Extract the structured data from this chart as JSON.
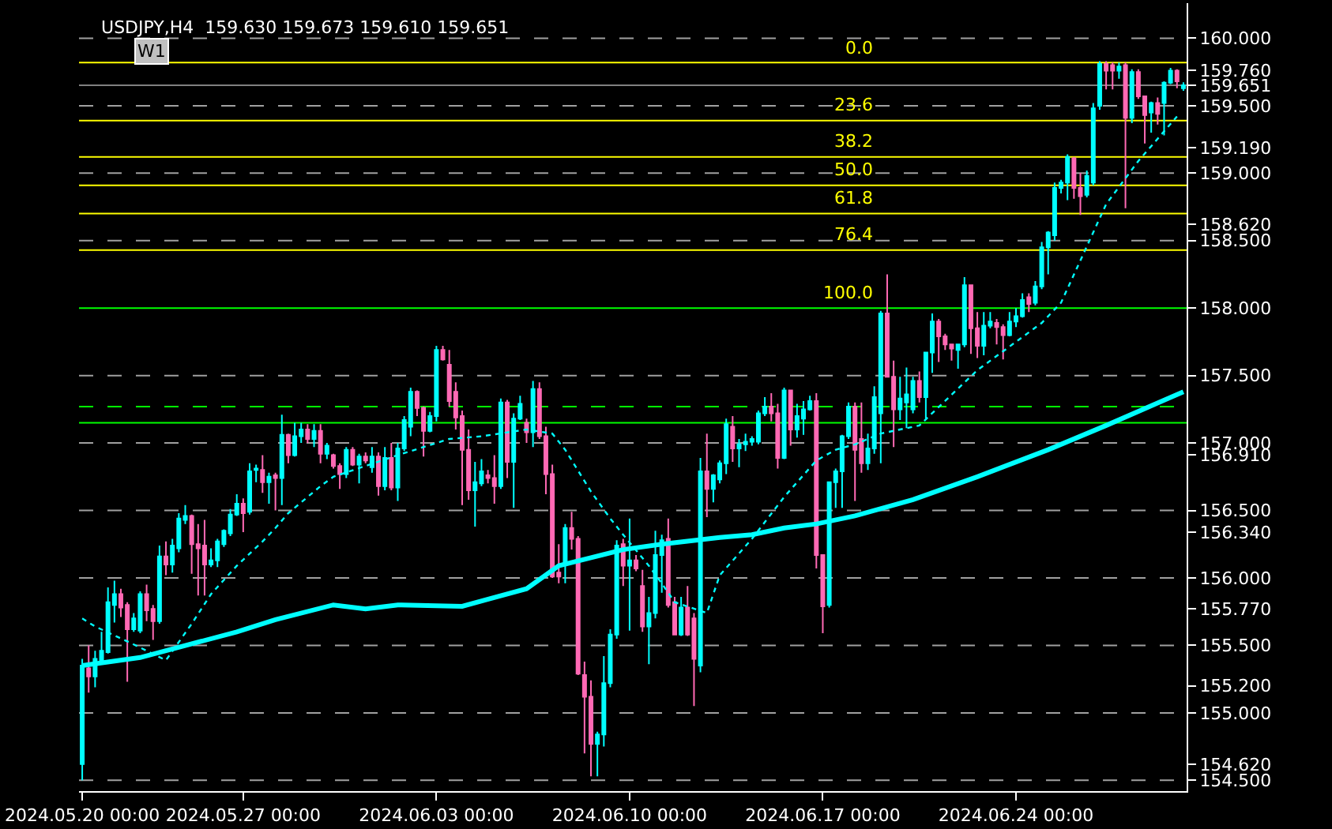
{
  "chart_data": {
    "type": "candlestick",
    "title": "USDJPY,H4  159.630 159.673 159.610 159.651",
    "annotations": [
      "W1",
      {
        "text": "0.0",
        "y": 159.82
      },
      {
        "text": "23.6",
        "y": 159.39
      },
      {
        "text": "38.2",
        "y": 159.12
      },
      {
        "text": "50.0",
        "y": 158.91
      },
      {
        "text": "61.8",
        "y": 158.7
      },
      {
        "text": "76.4",
        "y": 158.43
      },
      {
        "text": "100.0",
        "y": 158.0
      }
    ],
    "categories": [
      "2024.05.20 00:00",
      null,
      null,
      null,
      null,
      null,
      null,
      null,
      null,
      null,
      null,
      null,
      null,
      null,
      null,
      null,
      null,
      null,
      null,
      null,
      null,
      null,
      null,
      null,
      null,
      "2024.05.27 00:00",
      null,
      null,
      null,
      null,
      null,
      null,
      null,
      null,
      null,
      null,
      null,
      null,
      null,
      null,
      null,
      null,
      null,
      null,
      null,
      null,
      null,
      null,
      null,
      null,
      null,
      null,
      null,
      null,
      null,
      "2024.06.03 00:00",
      null,
      null,
      null,
      null,
      null,
      null,
      null,
      null,
      null,
      null,
      null,
      null,
      null,
      null,
      null,
      null,
      null,
      null,
      null,
      null,
      null,
      null,
      null,
      null,
      null,
      null,
      null,
      null,
      null,
      "2024.06.10 00:00",
      null,
      null,
      null,
      null,
      null,
      null,
      null,
      null,
      null,
      null,
      null,
      null,
      null,
      null,
      null,
      null,
      null,
      null,
      null,
      null,
      null,
      null,
      null,
      null,
      null,
      null,
      null,
      null,
      null,
      "2024.06.17 00:00",
      null,
      null,
      null,
      null,
      null,
      null,
      null,
      null,
      null,
      null,
      null,
      null,
      null,
      null,
      null,
      null,
      null,
      null,
      null,
      null,
      null,
      null,
      null,
      null,
      null,
      null,
      null,
      null,
      null,
      "2024.06.24 00:00",
      null,
      null,
      null,
      null,
      null,
      null,
      null,
      null,
      null,
      null,
      null,
      null,
      null,
      null,
      null,
      null,
      null,
      null,
      null,
      null,
      null,
      null,
      null,
      null,
      null,
      null
    ],
    "ylim": [
      154.42,
      160.26
    ],
    "yticks": [
      {
        "value": 160.0,
        "label": "160.000"
      },
      {
        "value": 159.76,
        "label": "159.760"
      },
      {
        "value": 159.651,
        "label": "159.651"
      },
      {
        "value": 159.5,
        "label": "159.500"
      },
      {
        "value": 159.19,
        "label": "159.190"
      },
      {
        "value": 159.0,
        "label": "159.000"
      },
      {
        "value": 158.62,
        "label": "158.620"
      },
      {
        "value": 158.5,
        "label": "158.500"
      },
      {
        "value": 158.0,
        "label": "158.000"
      },
      {
        "value": 157.5,
        "label": "157.500"
      },
      {
        "value": 157.0,
        "label": "157.000"
      },
      {
        "value": 156.91,
        "label": "156.910"
      },
      {
        "value": 156.5,
        "label": "156.500"
      },
      {
        "value": 156.34,
        "label": "156.340"
      },
      {
        "value": 156.0,
        "label": "156.000"
      },
      {
        "value": 155.77,
        "label": "155.770"
      },
      {
        "value": 155.5,
        "label": "155.500"
      },
      {
        "value": 155.2,
        "label": "155.200"
      },
      {
        "value": 155.0,
        "label": "155.000"
      },
      {
        "value": 154.62,
        "label": "154.620"
      },
      {
        "value": 154.5,
        "label": "154.500"
      }
    ],
    "ref_lines": [
      {
        "axis": "y",
        "value": 160.0,
        "color": "#a0a0a0",
        "line_style": "dashed"
      },
      {
        "axis": "y",
        "value": 159.5,
        "color": "#a0a0a0",
        "line_style": "dashed"
      },
      {
        "axis": "y",
        "value": 159.0,
        "color": "#a0a0a0",
        "line_style": "dashed"
      },
      {
        "axis": "y",
        "value": 158.5,
        "color": "#a0a0a0",
        "line_style": "dashed"
      },
      {
        "axis": "y",
        "value": 157.5,
        "color": "#a0a0a0",
        "line_style": "dashed"
      },
      {
        "axis": "y",
        "value": 157.0,
        "color": "#a0a0a0",
        "line_style": "dashed"
      },
      {
        "axis": "y",
        "value": 156.5,
        "color": "#a0a0a0",
        "line_style": "dashed"
      },
      {
        "axis": "y",
        "value": 156.0,
        "color": "#a0a0a0",
        "line_style": "dashed"
      },
      {
        "axis": "y",
        "value": 155.5,
        "color": "#a0a0a0",
        "line_style": "dashed"
      },
      {
        "axis": "y",
        "value": 155.0,
        "color": "#a0a0a0",
        "line_style": "dashed"
      },
      {
        "axis": "y",
        "value": 154.5,
        "color": "#a0a0a0",
        "line_style": "dashed"
      },
      {
        "axis": "y",
        "value": 159.651,
        "color": "#808080",
        "line_style": "solid"
      },
      {
        "axis": "y",
        "value": 157.27,
        "color": "#00ff00",
        "line_style": "dashed"
      },
      {
        "axis": "y",
        "value": 157.15,
        "color": "#00ff00",
        "line_style": "solid"
      },
      {
        "axis": "y",
        "value": 159.82,
        "color": "#ffff00",
        "line_style": "solid"
      },
      {
        "axis": "y",
        "value": 159.39,
        "color": "#ffff00",
        "line_style": "solid"
      },
      {
        "axis": "y",
        "value": 159.12,
        "color": "#ffff00",
        "line_style": "solid"
      },
      {
        "axis": "y",
        "value": 158.91,
        "color": "#ffff00",
        "line_style": "solid"
      },
      {
        "axis": "y",
        "value": 158.7,
        "color": "#ffff00",
        "line_style": "solid"
      },
      {
        "axis": "y",
        "value": 158.43,
        "color": "#ffff00",
        "line_style": "solid"
      },
      {
        "axis": "y",
        "value": 158.0,
        "color": "#00ff00",
        "line_style": "solid"
      }
    ],
    "series": [
      {
        "type": "line",
        "color": "#00ffff",
        "line_style": "solid",
        "values": [
          155.35,
          null,
          null,
          null,
          null,
          null,
          null,
          null,
          null,
          155.41,
          null,
          null,
          null,
          null,
          null,
          null,
          null,
          null,
          null,
          null,
          null,
          null,
          null,
          null,
          155.6,
          null,
          null,
          null,
          null,
          null,
          155.69,
          null,
          null,
          null,
          null,
          null,
          null,
          null,
          null,
          155.8,
          null,
          null,
          null,
          null,
          155.77,
          null,
          null,
          null,
          null,
          155.8,
          null,
          null,
          null,
          null,
          null,
          null,
          null,
          null,
          null,
          155.79,
          null,
          null,
          null,
          null,
          null,
          null,
          null,
          null,
          null,
          155.92,
          null,
          null,
          null,
          null,
          156.09,
          null,
          null,
          null,
          null,
          156.15,
          null,
          null,
          null,
          null,
          156.21,
          null,
          null,
          null,
          null,
          null,
          156.25,
          null,
          null,
          null,
          null,
          null,
          null,
          null,
          null,
          156.3,
          null,
          null,
          null,
          null,
          156.32,
          null,
          null,
          null,
          null,
          156.37,
          null,
          null,
          null,
          null,
          156.4,
          null,
          null,
          null,
          null,
          null,
          156.46,
          null,
          null,
          null,
          null,
          null,
          null,
          null,
          null,
          156.58,
          null,
          null,
          null,
          null,
          null,
          null,
          null,
          null,
          null,
          156.75,
          null,
          null,
          null,
          null,
          null,
          null,
          null,
          null,
          null,
          null,
          156.95,
          null,
          null,
          null,
          null,
          null,
          null,
          null,
          null,
          157.13,
          null,
          null,
          null,
          null,
          null,
          null,
          null,
          null,
          null,
          null,
          null,
          157.38
        ]
      },
      {
        "type": "line",
        "color": "#00ffff",
        "line_style": "dotted",
        "values": [
          155.7,
          null,
          155.64,
          null,
          null,
          null,
          null,
          155.53,
          null,
          null,
          null,
          null,
          null,
          155.39,
          null,
          null,
          null,
          155.66,
          null,
          null,
          155.88,
          null,
          null,
          null,
          156.09,
          null,
          null,
          null,
          156.27,
          null,
          156.37,
          null,
          156.48,
          null,
          null,
          null,
          null,
          156.68,
          null,
          156.75,
          null,
          null,
          null,
          null,
          null,
          null,
          null,
          null,
          null,
          156.91,
          null,
          null,
          null,
          null,
          null,
          null,
          null,
          157.03,
          null,
          null,
          null,
          null,
          157.05,
          null,
          null,
          null,
          null,
          null,
          null,
          157.1,
          null,
          null,
          null,
          157.07,
          null,
          156.95,
          null,
          null,
          null,
          156.64,
          null,
          null,
          156.44,
          null,
          156.32,
          null,
          null,
          null,
          156.09,
          null,
          155.96,
          null,
          155.82,
          null,
          null,
          null,
          null,
          155.74,
          null,
          156.02,
          null,
          null,
          null,
          null,
          156.29,
          null,
          null,
          null,
          null,
          156.6,
          null,
          null,
          null,
          null,
          156.87,
          null,
          null,
          156.95,
          null,
          null,
          156.99,
          null,
          null,
          null,
          157.07,
          null,
          null,
          null,
          null,
          null,
          157.13,
          null,
          null,
          null,
          null,
          null,
          null,
          null,
          null,
          157.54,
          null,
          null,
          null,
          null,
          null,
          null,
          null,
          null,
          null,
          157.89,
          null,
          null,
          158.04,
          null,
          null,
          null,
          null,
          null,
          null,
          158.77,
          null,
          null,
          null,
          null,
          159.09,
          null,
          null,
          null,
          null,
          null,
          159.42,
          null
        ]
      }
    ],
    "colors": [
      "#00ffff",
      "#ff69b4",
      "#00ffff",
      "#00ffff",
      "#00ffff",
      "#00ffff",
      "#ff69b4",
      "#ff69b4",
      "#00ffff",
      "#00ffff",
      "#ff69b4",
      "#ff69b4",
      "#00ffff",
      "#ff69b4",
      "#00ffff",
      "#00ffff",
      "#00ffff",
      "#ff69b4",
      "#ff69b4",
      "#ff69b4",
      "#00ffff",
      "#00ffff",
      "#00ffff",
      "#00ffff",
      "#00ffff",
      "#ff69b4",
      "#00ffff",
      "#00ffff",
      "#ff69b4",
      "#00ffff",
      "#ff69b4",
      "#00ffff",
      "#ff69b4",
      "#00ffff",
      "#00ffff",
      "#ff69b4",
      "#00ffff",
      "#ff69b4",
      "#00ffff",
      "#ff69b4",
      "#ff69b4",
      "#00ffff",
      "#ff69b4",
      "#00ffff",
      "#ff69b4",
      "#00ffff",
      "#ff69b4",
      "#00ffff",
      "#ff69b4",
      "#00ffff",
      "#00ffff",
      "#00ffff",
      "#ff69b4",
      "#ff69b4",
      "#00ffff",
      "#00ffff",
      "#ff69b4",
      "#ff69b4",
      "#ff69b4",
      "#ff69b4",
      "#ff69b4",
      "#00ffff",
      "#00ffff",
      "#ff69b4",
      "#ff69b4",
      "#00ffff",
      "#ff69b4",
      "#00ffff",
      "#00ffff",
      "#ff69b4",
      "#00ffff",
      "#ff69b4",
      "#ff69b4",
      "#ff69b4",
      "#ff69b4",
      "#00ffff",
      "#ff69b4",
      "#ff69b4",
      "#ff69b4",
      "#ff69b4",
      "#00ffff",
      "#00ffff",
      "#00ffff",
      "#00ffff",
      "#ff69b4",
      "#00ffff",
      "#ff69b4",
      "#ff69b4",
      "#00ffff",
      "#00ffff",
      "#00ffff",
      "#ff69b4",
      "#ff69b4",
      "#00ffff",
      "#ff69b4",
      "#ff69b4",
      "#00ffff",
      "#ff69b4",
      "#00ffff",
      "#00ffff",
      "#00ffff",
      "#ff69b4",
      "#00ffff",
      "#00ffff",
      "#00ffff",
      "#00ffff",
      "#00ffff",
      "#ff69b4",
      "#ff69b4",
      "#00ffff",
      "#ff69b4",
      "#00ffff",
      "#00ffff",
      "#00ffff",
      "#ff69b4",
      "#ff69b4",
      "#00ffff",
      "#00ffff",
      "#00ffff",
      "#00ffff",
      "#ff69b4",
      "#ff69b4",
      "#00ffff",
      "#00ffff",
      "#00ffff",
      "#ff69b4",
      "#ff69b4",
      "#00ffff",
      "#00ffff",
      "#00ffff",
      "#ff69b4",
      "#00ffff",
      "#00ffff",
      "#ff69b4",
      "#ff69b4",
      "#ff69b4",
      "#00ffff",
      "#00ffff",
      "#ff69b4",
      "#ff69b4",
      "#00ffff",
      "#00ffff",
      "#ff69b4",
      "#ff69b4",
      "#00ffff",
      "#00ffff",
      "#00ffff",
      "#ff69b4",
      "#00ffff",
      "#00ffff",
      "#00ffff",
      "#00ffff",
      "#00ffff",
      "#00ffff",
      "#ff69b4",
      "#ff69b4",
      "#00ffff",
      "#00ffff",
      "#00ffff",
      "#ff69b4",
      "#ff69b4",
      "#00ffff",
      "#ff69b4",
      "#00ffff",
      "#ff69b4",
      "#ff69b4",
      "#00ffff",
      "#ff69b4",
      "#00ffff",
      "#00ffff",
      "#ff69b4",
      "#00ffff"
    ],
    "ohlc": [
      [
        154.62,
        155.4,
        154.5,
        155.35
      ],
      [
        155.33,
        155.5,
        155.15,
        155.27
      ],
      [
        155.27,
        155.46,
        155.19,
        155.4
      ],
      [
        155.38,
        155.6,
        155.37,
        155.46
      ],
      [
        155.45,
        155.93,
        155.44,
        155.82
      ],
      [
        155.8,
        155.98,
        155.67,
        155.88
      ],
      [
        155.88,
        155.92,
        155.71,
        155.78
      ],
      [
        155.8,
        155.82,
        155.23,
        155.62
      ],
      [
        155.62,
        155.74,
        155.6,
        155.7
      ],
      [
        155.61,
        155.9,
        155.59,
        155.88
      ],
      [
        155.88,
        155.95,
        155.68,
        155.76
      ],
      [
        155.77,
        155.8,
        155.54,
        155.68
      ],
      [
        155.68,
        156.24,
        155.66,
        156.16
      ],
      [
        156.16,
        156.27,
        156.02,
        156.1
      ],
      [
        156.1,
        156.29,
        156.04,
        156.24
      ],
      [
        156.22,
        156.48,
        156.19,
        156.44
      ],
      [
        156.43,
        156.54,
        156.4,
        156.46
      ],
      [
        156.46,
        156.47,
        156.03,
        156.25
      ],
      [
        156.25,
        156.4,
        155.87,
        156.22
      ],
      [
        156.24,
        156.43,
        155.87,
        156.1
      ],
      [
        156.1,
        156.22,
        156.08,
        156.13
      ],
      [
        156.13,
        156.29,
        156.08,
        156.27
      ],
      [
        156.25,
        156.36,
        156.23,
        156.35
      ],
      [
        156.33,
        156.51,
        156.31,
        156.47
      ],
      [
        156.47,
        156.62,
        156.46,
        156.55
      ],
      [
        156.55,
        156.59,
        156.34,
        156.48
      ],
      [
        156.49,
        156.85,
        156.47,
        156.79
      ],
      [
        156.8,
        156.84,
        156.71,
        156.81
      ],
      [
        156.8,
        156.91,
        156.63,
        156.71
      ],
      [
        156.71,
        156.78,
        156.55,
        156.75
      ],
      [
        156.76,
        156.78,
        156.5,
        156.74
      ],
      [
        156.74,
        157.21,
        156.54,
        157.06
      ],
      [
        157.06,
        157.07,
        156.85,
        156.91
      ],
      [
        156.91,
        157.15,
        156.9,
        157.05
      ],
      [
        157.05,
        157.15,
        157.0,
        157.1
      ],
      [
        157.1,
        157.14,
        157.0,
        157.03
      ],
      [
        157.03,
        157.14,
        156.97,
        157.09
      ],
      [
        157.09,
        157.14,
        156.85,
        156.92
      ],
      [
        156.92,
        157.0,
        156.88,
        156.98
      ],
      [
        156.91,
        156.92,
        156.81,
        156.83
      ],
      [
        156.83,
        156.85,
        156.66,
        156.77
      ],
      [
        156.77,
        156.97,
        156.74,
        156.95
      ],
      [
        156.95,
        156.97,
        156.83,
        156.84
      ],
      [
        156.84,
        156.92,
        156.7,
        156.9
      ],
      [
        156.9,
        156.93,
        156.85,
        156.87
      ],
      [
        156.82,
        156.97,
        156.78,
        156.9
      ],
      [
        156.9,
        156.93,
        156.61,
        156.68
      ],
      [
        156.68,
        156.97,
        156.65,
        156.89
      ],
      [
        156.89,
        157.0,
        156.65,
        156.67
      ],
      [
        156.67,
        157.0,
        156.57,
        156.96
      ],
      [
        156.96,
        157.2,
        156.94,
        157.17
      ],
      [
        157.12,
        157.41,
        157.05,
        157.38
      ],
      [
        157.38,
        157.39,
        157.2,
        157.26
      ],
      [
        157.26,
        157.27,
        156.9,
        157.09
      ],
      [
        157.09,
        157.23,
        157.08,
        157.2
      ],
      [
        157.2,
        157.72,
        157.16,
        157.69
      ],
      [
        157.69,
        157.72,
        157.61,
        157.62
      ],
      [
        157.58,
        157.69,
        157.27,
        157.31
      ],
      [
        157.38,
        157.45,
        157.1,
        157.19
      ],
      [
        157.2,
        157.24,
        156.54,
        156.95
      ],
      [
        156.95,
        157.1,
        156.58,
        156.65
      ],
      [
        156.65,
        156.86,
        156.38,
        156.71
      ],
      [
        156.7,
        156.88,
        156.68,
        156.79
      ],
      [
        156.76,
        156.8,
        156.7,
        156.74
      ],
      [
        156.74,
        156.91,
        156.55,
        156.68
      ],
      [
        156.68,
        157.33,
        156.66,
        157.3
      ],
      [
        157.3,
        157.32,
        156.74,
        156.86
      ],
      [
        156.86,
        157.22,
        156.52,
        157.18
      ],
      [
        157.18,
        157.35,
        157.17,
        157.29
      ],
      [
        157.15,
        157.18,
        157.0,
        157.08
      ],
      [
        157.08,
        157.46,
        156.97,
        157.4
      ],
      [
        157.4,
        157.45,
        157.03,
        157.05
      ],
      [
        157.05,
        157.12,
        156.62,
        156.77
      ],
      [
        156.77,
        156.84,
        156.0,
        156.01
      ],
      [
        156.04,
        156.25,
        155.96,
        156.01
      ],
      [
        156.1,
        156.4,
        155.96,
        156.37
      ],
      [
        156.37,
        156.49,
        156.21,
        156.29
      ],
      [
        156.29,
        156.31,
        155.28,
        155.29
      ],
      [
        155.28,
        155.38,
        154.7,
        155.12
      ],
      [
        155.12,
        155.24,
        154.53,
        154.77
      ],
      [
        154.77,
        154.86,
        154.53,
        154.84
      ],
      [
        154.84,
        155.42,
        154.75,
        155.22
      ],
      [
        155.22,
        155.62,
        155.19,
        155.58
      ],
      [
        155.58,
        156.28,
        155.55,
        156.24
      ],
      [
        156.25,
        156.29,
        155.94,
        156.09
      ],
      [
        156.09,
        156.44,
        155.61,
        156.13
      ],
      [
        156.13,
        156.17,
        156.05,
        156.07
      ],
      [
        155.94,
        156.06,
        155.6,
        155.64
      ],
      [
        155.64,
        155.86,
        155.36,
        155.74
      ],
      [
        155.74,
        156.35,
        155.7,
        156.17
      ],
      [
        156.17,
        156.32,
        155.89,
        156.28
      ],
      [
        156.29,
        156.44,
        155.78,
        155.8
      ],
      [
        155.82,
        155.86,
        155.58,
        155.58
      ],
      [
        155.58,
        155.86,
        155.57,
        155.78
      ],
      [
        155.78,
        155.94,
        155.57,
        155.58
      ],
      [
        155.7,
        155.74,
        155.05,
        155.4
      ],
      [
        155.35,
        156.89,
        155.3,
        156.79
      ],
      [
        156.79,
        157.07,
        156.45,
        156.66
      ],
      [
        156.66,
        156.77,
        156.56,
        156.76
      ],
      [
        156.73,
        156.87,
        156.7,
        156.85
      ],
      [
        156.85,
        157.18,
        156.77,
        157.14
      ],
      [
        157.12,
        157.2,
        156.86,
        156.96
      ],
      [
        156.96,
        157.03,
        156.82,
        156.99
      ],
      [
        156.99,
        157.07,
        156.94,
        157.01
      ],
      [
        157.01,
        157.05,
        156.98,
        157.03
      ],
      [
        157.01,
        157.24,
        156.99,
        157.22
      ],
      [
        157.22,
        157.34,
        157.2,
        157.27
      ],
      [
        157.27,
        157.37,
        157.16,
        157.22
      ],
      [
        157.22,
        157.29,
        156.81,
        156.89
      ],
      [
        156.89,
        157.41,
        156.88,
        157.39
      ],
      [
        157.39,
        157.39,
        156.98,
        157.1
      ],
      [
        157.1,
        157.29,
        157.04,
        157.2
      ],
      [
        157.18,
        157.31,
        157.06,
        157.25
      ],
      [
        157.25,
        157.35,
        157.24,
        157.31
      ],
      [
        157.31,
        157.37,
        156.07,
        156.17
      ],
      [
        156.17,
        156.17,
        155.59,
        155.79
      ],
      [
        155.8,
        156.71,
        155.78,
        156.71
      ],
      [
        156.71,
        156.81,
        156.52,
        156.79
      ],
      [
        156.79,
        157.06,
        156.52,
        157.05
      ],
      [
        157.05,
        157.3,
        157.03,
        157.27
      ],
      [
        157.27,
        157.3,
        156.57,
        156.95
      ],
      [
        157.03,
        157.3,
        156.78,
        156.85
      ],
      [
        156.85,
        157.07,
        156.8,
        156.96
      ],
      [
        156.96,
        157.42,
        156.92,
        157.34
      ],
      [
        157.22,
        157.98,
        156.85,
        157.96
      ],
      [
        157.96,
        158.25,
        157.49,
        157.49
      ],
      [
        157.49,
        157.61,
        156.97,
        157.25
      ],
      [
        157.25,
        157.49,
        157.17,
        157.33
      ],
      [
        157.3,
        157.56,
        157.11,
        157.36
      ],
      [
        157.25,
        157.49,
        157.22,
        157.46
      ],
      [
        157.46,
        157.53,
        157.3,
        157.34
      ],
      [
        157.34,
        157.67,
        157.18,
        157.67
      ],
      [
        157.67,
        157.96,
        157.52,
        157.9
      ],
      [
        157.9,
        157.92,
        157.6,
        157.79
      ],
      [
        157.79,
        157.81,
        157.69,
        157.73
      ],
      [
        157.73,
        157.73,
        157.61,
        157.7
      ],
      [
        157.69,
        157.73,
        157.55,
        157.73
      ],
      [
        157.73,
        158.23,
        157.71,
        158.17
      ],
      [
        158.17,
        158.17,
        157.66,
        157.85
      ],
      [
        157.85,
        157.97,
        157.63,
        157.72
      ],
      [
        157.72,
        157.97,
        157.65,
        157.87
      ],
      [
        157.87,
        157.97,
        157.85,
        157.9
      ],
      [
        157.89,
        157.92,
        157.73,
        157.86
      ],
      [
        157.86,
        157.88,
        157.62,
        157.8
      ],
      [
        157.8,
        157.97,
        157.79,
        157.9
      ],
      [
        157.9,
        158.0,
        157.86,
        157.94
      ],
      [
        157.94,
        158.11,
        157.93,
        158.06
      ],
      [
        158.08,
        158.11,
        157.97,
        158.03
      ],
      [
        158.04,
        158.2,
        158.02,
        158.16
      ],
      [
        158.16,
        158.49,
        158.14,
        158.45
      ],
      [
        158.45,
        158.57,
        158.25,
        158.56
      ],
      [
        158.54,
        158.93,
        158.5,
        158.89
      ],
      [
        158.89,
        158.95,
        158.85,
        158.93
      ],
      [
        158.93,
        159.14,
        158.8,
        159.12
      ],
      [
        159.11,
        159.12,
        158.81,
        158.89
      ],
      [
        158.89,
        159.0,
        158.69,
        158.83
      ],
      [
        158.84,
        159.02,
        158.82,
        158.98
      ],
      [
        158.93,
        159.52,
        158.91,
        159.48
      ],
      [
        159.5,
        159.83,
        159.47,
        159.81
      ],
      [
        159.81,
        159.83,
        159.62,
        159.76
      ],
      [
        159.8,
        159.82,
        159.62,
        159.76
      ],
      [
        159.76,
        159.82,
        159.7,
        159.79
      ],
      [
        159.8,
        159.82,
        158.74,
        159.41
      ],
      [
        159.41,
        159.77,
        159.37,
        159.75
      ],
      [
        159.75,
        159.77,
        159.55,
        159.57
      ],
      [
        159.57,
        159.57,
        159.22,
        159.43
      ],
      [
        159.45,
        159.53,
        159.3,
        159.52
      ],
      [
        159.52,
        159.56,
        159.36,
        159.44
      ],
      [
        159.52,
        159.68,
        159.28,
        159.67
      ],
      [
        159.67,
        159.78,
        159.66,
        159.76
      ],
      [
        159.76,
        159.77,
        159.63,
        159.68
      ],
      [
        159.63,
        159.673,
        159.61,
        159.651
      ]
    ]
  }
}
